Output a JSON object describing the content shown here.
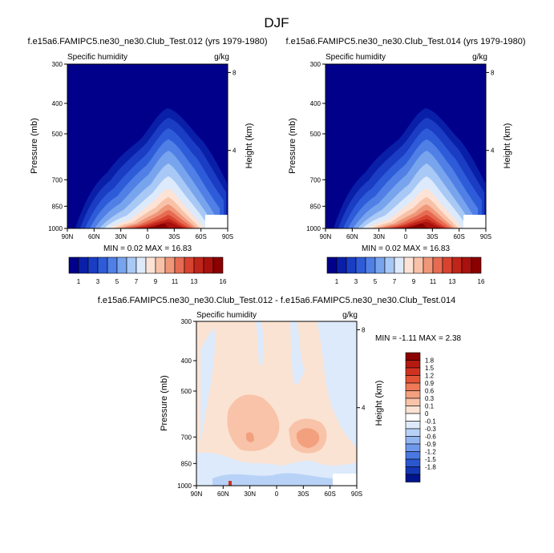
{
  "season": "DJF",
  "panels": [
    {
      "title": "f.e15a6.FAMIPC5.ne30_ne30.Club_Test.012 (yrs 1979-1980)",
      "left_label": "Specific humidity",
      "right_label": "g/kg",
      "stats": "MIN =  0.02  MAX = 16.83"
    },
    {
      "title": "f.e15a6.FAMIPC5.ne30_ne30.Club_Test.014 (yrs 1979-1980)",
      "left_label": "Specific humidity",
      "right_label": "g/kg",
      "stats": "MIN =  0.02  MAX = 16.83"
    },
    {
      "title": "f.e15a6.FAMIPC5.ne30_ne30.Club_Test.012 - f.e15a6.FAMIPC5.ne30_ne30.Club_Test.014",
      "left_label": "Specific humidity",
      "right_label": "g/kg",
      "stats": "MIN = -1.11  MAX =  2.38"
    }
  ],
  "colorbars": {
    "absolute": {
      "colors": [
        "#00008B",
        "#0A1FA8",
        "#1A3DC4",
        "#2E5CD9",
        "#5080E6",
        "#78A4EE",
        "#A8C8F5",
        "#DDEAFB",
        "#FCE3D6",
        "#F8C2A8",
        "#F0977A",
        "#E66B52",
        "#D8432F",
        "#C0251A",
        "#A8110D",
        "#8B0000"
      ],
      "labels": [
        "1",
        "3",
        "5",
        "7",
        "9",
        "11",
        "13",
        "16"
      ]
    },
    "difference": {
      "colors": [
        "#8B0000",
        "#B51A10",
        "#D03222",
        "#E35436",
        "#EE7A58",
        "#F3A07F",
        "#F8C3A8",
        "#FBE3D3",
        "#FFFFFF",
        "#DDEAFB",
        "#B8D2F7",
        "#93B6F1",
        "#6E98EA",
        "#4A78E0",
        "#2A57CF",
        "#1437B4",
        "#00148E"
      ],
      "labels": [
        "1.8",
        "1.5",
        "1.2",
        "0.9",
        "0.6",
        "0.3",
        "0.1",
        "0",
        "-0.1",
        "-0.3",
        "-0.6",
        "-0.9",
        "-1.2",
        "-1.5",
        "-1.8"
      ]
    }
  },
  "chart_data": [
    {
      "type": "heatmap",
      "title": "f.e15a6.FAMIPC5.ne30_ne30.Club_Test.012 (yrs 1979-1980)",
      "variable": "Specific humidity",
      "units": "g/kg",
      "xlabel": "",
      "ylabel": "Pressure (mb)",
      "y2label": "Height (km)",
      "x_ticks": [
        "90N",
        "60N",
        "30N",
        "0",
        "30S",
        "60S",
        "90S"
      ],
      "y_ticks": [
        300,
        400,
        500,
        700,
        850,
        1000
      ],
      "y2_ticks": [
        8,
        4
      ],
      "xlim": [
        90,
        -90
      ],
      "ylim": [
        1000,
        300
      ],
      "min": 0.02,
      "max": 16.83,
      "levels": [
        1,
        2,
        3,
        4,
        5,
        6,
        7,
        8,
        9,
        10,
        11,
        12,
        13,
        14,
        15,
        16
      ]
    },
    {
      "type": "heatmap",
      "title": "f.e15a6.FAMIPC5.ne30_ne30.Club_Test.014 (yrs 1979-1980)",
      "variable": "Specific humidity",
      "units": "g/kg",
      "xlabel": "",
      "ylabel": "Pressure (mb)",
      "y2label": "Height (km)",
      "x_ticks": [
        "90N",
        "60N",
        "30N",
        "0",
        "30S",
        "60S",
        "90S"
      ],
      "y_ticks": [
        300,
        400,
        500,
        700,
        850,
        1000
      ],
      "y2_ticks": [
        8,
        4
      ],
      "xlim": [
        90,
        -90
      ],
      "ylim": [
        1000,
        300
      ],
      "min": 0.02,
      "max": 16.83,
      "levels": [
        1,
        2,
        3,
        4,
        5,
        6,
        7,
        8,
        9,
        10,
        11,
        12,
        13,
        14,
        15,
        16
      ]
    },
    {
      "type": "heatmap",
      "title": "f.e15a6.FAMIPC5.ne30_ne30.Club_Test.012 - f.e15a6.FAMIPC5.ne30_ne30.Club_Test.014",
      "variable": "Specific humidity",
      "units": "g/kg",
      "xlabel": "",
      "ylabel": "Pressure (mb)",
      "y2label": "Height (km)",
      "x_ticks": [
        "90N",
        "60N",
        "30N",
        "0",
        "30S",
        "60S",
        "90S"
      ],
      "y_ticks": [
        300,
        400,
        500,
        700,
        850,
        1000
      ],
      "y2_ticks": [
        8,
        4
      ],
      "xlim": [
        90,
        -90
      ],
      "ylim": [
        1000,
        300
      ],
      "min": -1.11,
      "max": 2.38,
      "levels": [
        -1.8,
        -1.5,
        -1.2,
        -0.9,
        -0.6,
        -0.3,
        -0.1,
        0,
        0.1,
        0.3,
        0.6,
        0.9,
        1.2,
        1.5,
        1.8
      ]
    }
  ]
}
